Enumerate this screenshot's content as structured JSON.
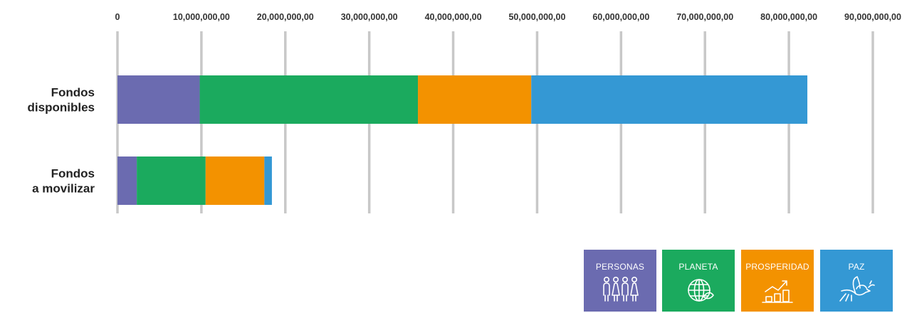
{
  "chart_data": {
    "type": "bar",
    "orientation": "horizontal",
    "stacked": true,
    "title": "",
    "xlabel": "",
    "ylabel": "",
    "xlim": [
      0,
      90000000
    ],
    "x_ticks": [
      0,
      10000000,
      20000000,
      30000000,
      40000000,
      50000000,
      60000000,
      70000000,
      80000000,
      90000000
    ],
    "x_tick_labels": [
      "0",
      "10,000,000,00",
      "20,000,000,00",
      "30,000,000,00",
      "40,000,000,00",
      "50,000,000,00",
      "60,000,000,00",
      "70,000,000,00",
      "80,000,000,00",
      "90,000,000,00"
    ],
    "x_axis_position": "top",
    "grid": true,
    "categories": [
      {
        "lines": [
          "Fondos",
          "disponibles"
        ]
      },
      {
        "lines": [
          "Fondos",
          "a movilizar"
        ]
      }
    ],
    "series": [
      {
        "name": "PERSONAS",
        "color": "#6B6BB0",
        "values": [
          9800000,
          2300000
        ]
      },
      {
        "name": "PLANETA",
        "color": "#1BAA5E",
        "values": [
          26000000,
          8200000
        ]
      },
      {
        "name": "PROSPERIDAD",
        "color": "#F39200",
        "values": [
          13500000,
          7000000
        ]
      },
      {
        "name": "PAZ",
        "color": "#3498D4",
        "values": [
          32900000,
          900000
        ]
      }
    ],
    "legend_position": "bottom-right"
  },
  "legend": [
    {
      "label": "PERSONAS",
      "icon": "people-icon",
      "color": "#6B6BB0"
    },
    {
      "label": "PLANETA",
      "icon": "globe-leaf-icon",
      "color": "#1BAA5E"
    },
    {
      "label": "PROSPERIDAD",
      "icon": "growth-chart-icon",
      "color": "#F39200"
    },
    {
      "label": "PAZ",
      "icon": "dove-icon",
      "color": "#3498D4"
    }
  ]
}
